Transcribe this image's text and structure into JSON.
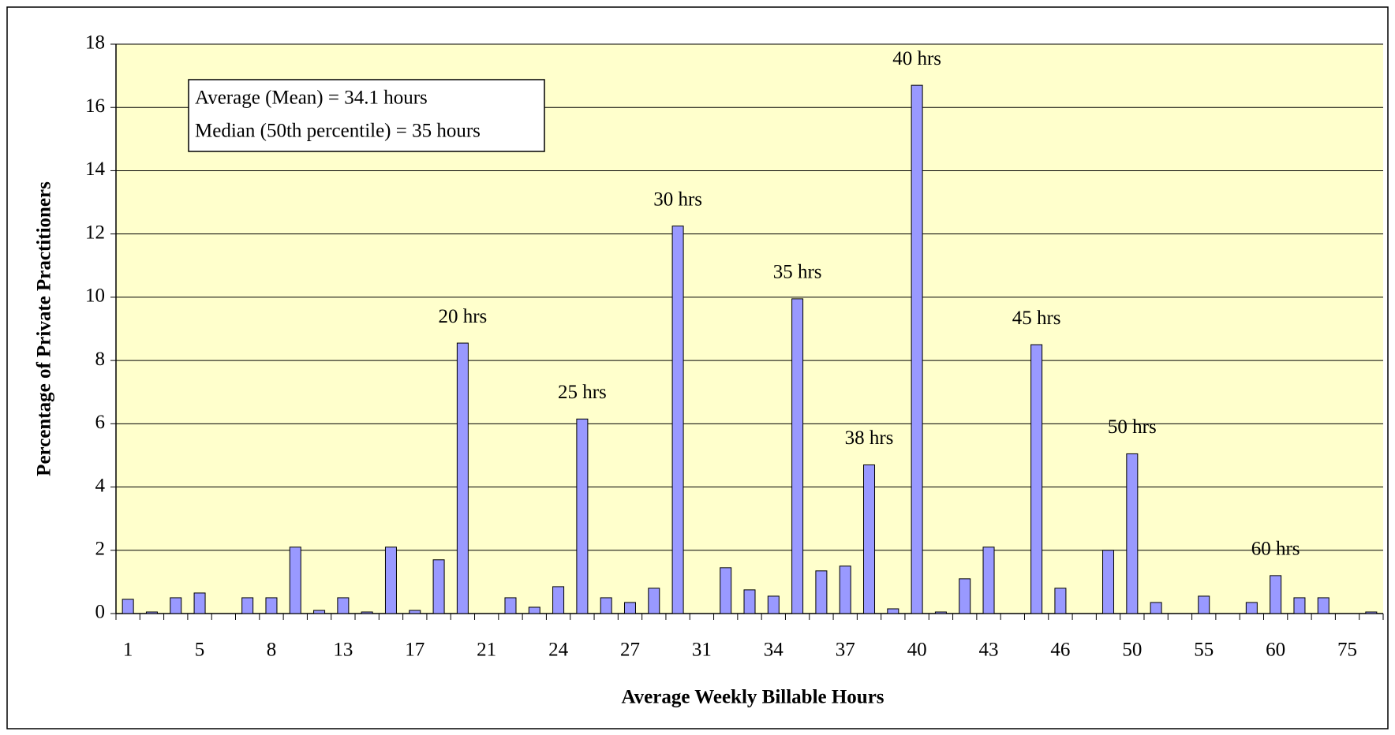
{
  "chart_data": {
    "type": "bar",
    "x_label": "Average Weekly Billable Hours",
    "y_label": "Percentage of Private Practitioners",
    "categories": [
      "1",
      null,
      null,
      "5",
      null,
      null,
      "8",
      null,
      null,
      "13",
      null,
      null,
      "17",
      null,
      null,
      "21",
      null,
      null,
      "24",
      null,
      null,
      "27",
      null,
      null,
      "31",
      null,
      null,
      "34",
      null,
      null,
      "37",
      null,
      null,
      "40",
      null,
      null,
      "43",
      null,
      null,
      "46",
      null,
      null,
      "50",
      null,
      null,
      "55",
      null,
      null,
      "60",
      null,
      null,
      "75",
      null
    ],
    "values": [
      0.45,
      0.05,
      0.5,
      0.65,
      0,
      0.5,
      0.5,
      2.1,
      0.1,
      0.5,
      0.05,
      2.1,
      0.1,
      1.7,
      8.55,
      0,
      0.5,
      0.2,
      0.85,
      6.15,
      0.5,
      0.35,
      0.8,
      12.25,
      0,
      1.45,
      0.75,
      0.55,
      9.95,
      1.35,
      1.5,
      4.7,
      0.15,
      16.7,
      0.05,
      1.1,
      2.1,
      0,
      8.5,
      0.8,
      0,
      2.0,
      5.05,
      0.35,
      0,
      0.55,
      0,
      0.35,
      1.2,
      0.5,
      0.5,
      0,
      0.05
    ],
    "value_labels": [
      null,
      null,
      null,
      null,
      null,
      null,
      null,
      null,
      null,
      null,
      null,
      null,
      null,
      null,
      "20 hrs",
      null,
      null,
      null,
      null,
      "25 hrs",
      null,
      null,
      null,
      "30 hrs",
      null,
      null,
      null,
      null,
      "35 hrs",
      null,
      null,
      "38 hrs",
      null,
      "40 hrs",
      null,
      null,
      null,
      null,
      "45 hrs",
      null,
      null,
      null,
      "50 hrs",
      null,
      null,
      null,
      null,
      null,
      "60 hrs",
      null,
      null,
      null,
      null
    ],
    "color": "#9999ff",
    "ylim": [
      0,
      18
    ],
    "yticks": [
      0,
      2,
      4,
      6,
      8,
      10,
      12,
      14,
      16,
      18
    ],
    "grid": true,
    "annotations": [
      "Average (Mean) = 34.1 hours",
      "Median (50th percentile) = 35 hours"
    ]
  }
}
